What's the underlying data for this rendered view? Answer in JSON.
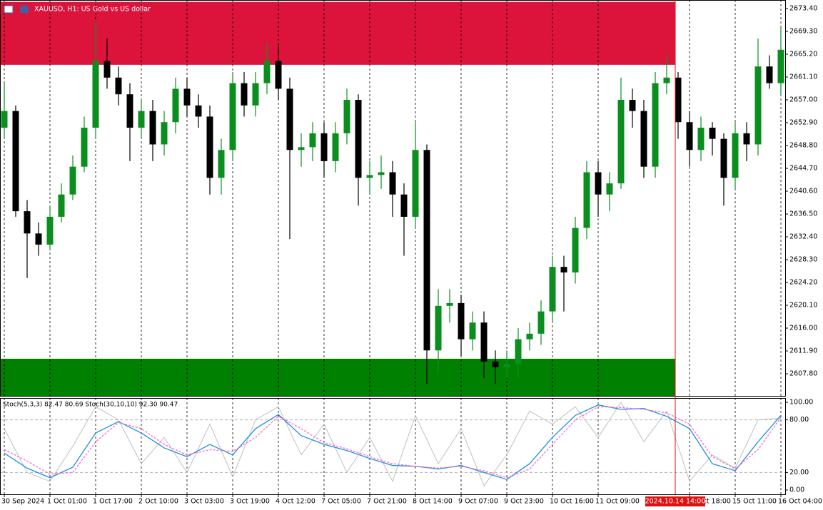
{
  "chart_data": {
    "type": "candlestick",
    "title": "XAUUSD, H1:  US Gold vs US dollar",
    "up_color": "#0a8f1f",
    "down_color": "#000000",
    "xlim": [
      -0.375,
      68.375
    ],
    "ylim": [
      2603.83,
      2674.94
    ],
    "yticks": [
      {
        "value": 2673.4,
        "label": "2673.40"
      },
      {
        "value": 2669.3,
        "label": "2669.30"
      },
      {
        "value": 2665.2,
        "label": "2665.20"
      },
      {
        "value": 2661.1,
        "label": "2661.10"
      },
      {
        "value": 2657,
        "label": "2657.00"
      },
      {
        "value": 2652.9,
        "label": "2652.90"
      },
      {
        "value": 2648.8,
        "label": "2648.80"
      },
      {
        "value": 2644.7,
        "label": "2644.70"
      },
      {
        "value": 2640.6,
        "label": "2640.60"
      },
      {
        "value": 2636.5,
        "label": "2636.50"
      },
      {
        "value": 2632.4,
        "label": "2632.40"
      },
      {
        "value": 2628.3,
        "label": "2628.30"
      },
      {
        "value": 2624.2,
        "label": "2624.20"
      },
      {
        "value": 2620.1,
        "label": "2620.10"
      },
      {
        "value": 2616,
        "label": "2616.00"
      },
      {
        "value": 2611.9,
        "label": "2611.90"
      },
      {
        "value": 2607.8,
        "label": "2607.80"
      }
    ],
    "xticks": [
      {
        "value": 0,
        "label": "30 Sep 2024"
      },
      {
        "value": 4,
        "label": "1 Oct 01:00"
      },
      {
        "value": 8,
        "label": "1 Oct 17:00"
      },
      {
        "value": 12,
        "label": "2 Oct 10:00"
      },
      {
        "value": 16,
        "label": "3 Oct 03:00"
      },
      {
        "value": 20,
        "label": "3 Oct 19:00"
      },
      {
        "value": 24,
        "label": "4 Oct 12:00"
      },
      {
        "value": 28,
        "label": "7 Oct 05:00"
      },
      {
        "value": 32,
        "label": "7 Oct 21:00"
      },
      {
        "value": 36,
        "label": "8 Oct 14:00"
      },
      {
        "value": 40,
        "label": "9 Oct 07:00"
      },
      {
        "value": 44,
        "label": "9 Oct 23:00"
      },
      {
        "value": 48,
        "label": "10 Oct 16:00"
      },
      {
        "value": 52,
        "label": "11 Oct 09:00"
      },
      {
        "value": 60,
        "label": "14 Oct 18:00"
      },
      {
        "value": 64,
        "label": "15 Oct 11:00"
      },
      {
        "value": 68,
        "label": "16 Oct 04:00"
      }
    ],
    "marker": {
      "value": 58.75,
      "label": "2024.10.14 14:00",
      "color": "#e01010"
    },
    "zones": [
      {
        "color": "#dc143c",
        "from": 2663.3,
        "to": 2674.6
      },
      {
        "color": "#008000",
        "from": 2603.83,
        "to": 2610.5
      }
    ],
    "open": [
      2652,
      2655,
      2637,
      2633,
      2631,
      2636,
      2640,
      2645,
      2652,
      2664,
      2661,
      2658,
      2652,
      2655,
      2649,
      2653,
      2659,
      2656,
      2654,
      2643,
      2648,
      2660,
      2656,
      2660,
      2664,
      2659,
      2648,
      2648.5,
      2651,
      2646,
      2651,
      2657,
      2643,
      2643.5,
      2644,
      2640,
      2636,
      2648,
      2612,
      2620,
      2620.5,
      2614,
      2617,
      2610,
      2609,
      2609.5,
      2614,
      2615,
      2619,
      2627,
      2626,
      2634,
      2644,
      2640,
      2642,
      2657,
      2655,
      2645,
      2660,
      2661,
      2653,
      2648,
      2652,
      2650,
      2643,
      2651,
      2649,
      2663,
      2660
    ],
    "high": [
      2660,
      2656,
      2639,
      2635,
      2638,
      2642,
      2647,
      2654,
      2671,
      2668,
      2663,
      2660,
      2657,
      2657,
      2655,
      2661,
      2661,
      2658,
      2656,
      2650,
      2662,
      2662,
      2662,
      2667,
      2667,
      2661,
      2651,
      2653,
      2653,
      2653,
      2659,
      2658,
      2646,
      2647,
      2646,
      2642,
      2653,
      2649,
      2623,
      2623,
      2622,
      2619,
      2619,
      2612,
      2612,
      2616,
      2617,
      2621,
      2629,
      2629,
      2636,
      2646,
      2646,
      2644,
      2661,
      2659,
      2657,
      2662,
      2665,
      2662,
      2655,
      2654,
      2653,
      2651,
      2653,
      2653,
      2668,
      2665,
      2670
    ],
    "low": [
      2650,
      2636,
      2625,
      2629,
      2630,
      2635,
      2639,
      2644,
      2650,
      2659,
      2656,
      2646,
      2650,
      2646,
      2647,
      2651,
      2654,
      2652,
      2640,
      2640,
      2646,
      2654,
      2654,
      2658,
      2657,
      2632,
      2645,
      2646,
      2643,
      2644,
      2649,
      2638,
      2640,
      2641,
      2636,
      2629,
      2634,
      2606,
      2608,
      2617,
      2611,
      2612,
      2607,
      2606,
      2607,
      2607,
      2612,
      2613,
      2617,
      2619,
      2624,
      2632,
      2636,
      2637,
      2641,
      2652,
      2643,
      2643,
      2658,
      2650,
      2645,
      2646,
      2647,
      2638,
      2641,
      2646,
      2647,
      2659,
      2658
    ],
    "close": [
      2655,
      2637,
      2633,
      2631,
      2636,
      2640,
      2645,
      2652,
      2664,
      2661,
      2658,
      2652,
      2655,
      2649,
      2653,
      2659,
      2656,
      2654,
      2643,
      2648,
      2660,
      2656,
      2660,
      2664,
      2659,
      2648,
      2648.5,
      2651,
      2646,
      2651,
      2657,
      2643,
      2643.5,
      2644,
      2640,
      2636,
      2648,
      2612,
      2620,
      2620.5,
      2614,
      2617,
      2610,
      2609,
      2609.5,
      2614,
      2615,
      2619,
      2627,
      2626,
      2634,
      2644,
      2640,
      2642,
      2657,
      2655,
      2645,
      2660,
      2661,
      2653,
      2648,
      2652,
      2650,
      2643,
      2651,
      2649,
      2663,
      2660,
      2666
    ],
    "indicator": {
      "title": "Stoch(5,3,3) 82.47 80.69 Stoch(30,10,10) 92.30 90.47",
      "y2lim": [
        -4.9,
        104.9
      ],
      "y2ticks": [
        {
          "value": 100,
          "label": "100.00"
        },
        {
          "value": 80,
          "label": "80.00"
        },
        {
          "value": 20,
          "label": "20.00"
        },
        {
          "value": 0,
          "label": "0.00"
        }
      ],
      "levels": [
        80,
        20
      ],
      "x": [
        0,
        2,
        4,
        6,
        8,
        10,
        12,
        14,
        16,
        18,
        20,
        22,
        24,
        26,
        28,
        30,
        32,
        34,
        36,
        38,
        40,
        42,
        44,
        46,
        48,
        50,
        52,
        54,
        56,
        58,
        60,
        62,
        64,
        66,
        68
      ],
      "series": [
        {
          "color": "#c0c0c0",
          "dash": false,
          "values": [
            70,
            20,
            10,
            50,
            95,
            80,
            30,
            60,
            20,
            75,
            15,
            80,
            95,
            40,
            75,
            20,
            60,
            10,
            85,
            30,
            70,
            5,
            40,
            90,
            75,
            95,
            60,
            100,
            55,
            90,
            10,
            40,
            25,
            80,
            82
          ]
        },
        {
          "color": "#1e8fe0",
          "dash": false,
          "values": [
            42,
            25,
            14,
            26,
            65,
            78,
            65,
            48,
            38,
            52,
            40,
            70,
            86,
            62,
            52,
            45,
            36,
            28,
            27,
            24,
            28,
            20,
            12,
            30,
            60,
            85,
            97,
            92,
            93,
            84,
            70,
            30,
            22,
            55,
            85
          ]
        },
        {
          "color": "#ff69c8",
          "dash": true,
          "values": [
            46,
            33,
            18,
            20,
            55,
            77,
            70,
            52,
            40,
            46,
            44,
            60,
            84,
            70,
            54,
            47,
            38,
            30,
            27,
            25,
            27,
            22,
            14,
            24,
            52,
            80,
            95,
            94,
            92,
            88,
            75,
            38,
            24,
            46,
            83
          ]
        }
      ]
    }
  }
}
